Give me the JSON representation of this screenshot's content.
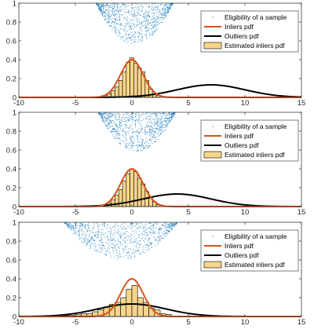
{
  "colors": {
    "scatter": "#2e86c1",
    "inliers": "#d95319",
    "outliers": "#000000",
    "hist_fill": "#f7d58a",
    "hist_edge": "#000000",
    "axes": "#262626"
  },
  "chart_data": [
    {
      "type": "histogram_with_scatter_and_lines",
      "xlim": [
        -10,
        15
      ],
      "ylim": [
        0,
        1
      ],
      "xticks": [
        -10,
        -5,
        0,
        5,
        10,
        15
      ],
      "yticks": [
        0,
        0.2,
        0.4,
        0.6,
        0.8,
        1
      ],
      "xtick_labels": [
        "-10",
        "-5",
        "0",
        "5",
        "10",
        "15"
      ],
      "ytick_labels": [
        "0",
        "0.2",
        "0.4",
        "0.6",
        "0.8",
        "1"
      ],
      "legend": {
        "position": "top-right",
        "entries": [
          "Eligibility of a sample",
          "Inliers pdf",
          "Outliers pdf",
          "Estimated inliers pdf"
        ]
      },
      "inliers_pdf": {
        "mean": 0,
        "std": 1,
        "peak": 0.4
      },
      "outliers_pdf": {
        "mean": 7,
        "std": 3,
        "peak": 0.133
      },
      "histogram": {
        "bin_width": 0.333,
        "bins": [
          {
            "x0": -2.5,
            "h": 0.02
          },
          {
            "x0": -2.167,
            "h": 0.04
          },
          {
            "x0": -1.833,
            "h": 0.07
          },
          {
            "x0": -1.5,
            "h": 0.11
          },
          {
            "x0": -1.167,
            "h": 0.18
          },
          {
            "x0": -0.833,
            "h": 0.27
          },
          {
            "x0": -0.5,
            "h": 0.37
          },
          {
            "x0": -0.167,
            "h": 0.42
          },
          {
            "x0": 0.167,
            "h": 0.36
          },
          {
            "x0": 0.5,
            "h": 0.31
          },
          {
            "x0": 0.833,
            "h": 0.27
          },
          {
            "x0": 1.167,
            "h": 0.18
          },
          {
            "x0": 1.5,
            "h": 0.09
          },
          {
            "x0": 1.833,
            "h": 0.04
          },
          {
            "x0": 2.167,
            "h": 0.02
          }
        ]
      },
      "eligibility_scatter": {
        "x_range": [
          -3.2,
          3.6
        ],
        "y_min": 0.57,
        "y_max": 1.0
      }
    },
    {
      "type": "histogram_with_scatter_and_lines",
      "xlim": [
        -10,
        15
      ],
      "ylim": [
        0,
        1
      ],
      "xticks": [
        -10,
        -5,
        0,
        5,
        10,
        15
      ],
      "yticks": [
        0,
        0.2,
        0.4,
        0.6,
        0.8,
        1
      ],
      "xtick_labels": [
        "-10",
        "-5",
        "0",
        "5",
        "10",
        "15"
      ],
      "ytick_labels": [
        "0",
        "0.2",
        "0.4",
        "0.6",
        "0.8",
        "1"
      ],
      "legend": {
        "position": "top-right",
        "entries": [
          "Eligibility of a sample",
          "Inliers pdf",
          "Outliers pdf",
          "Estimated inliers pdf"
        ]
      },
      "inliers_pdf": {
        "mean": 0,
        "std": 1,
        "peak": 0.4
      },
      "outliers_pdf": {
        "mean": 4,
        "std": 3,
        "peak": 0.133
      },
      "histogram": {
        "bin_width": 0.333,
        "bins": [
          {
            "x0": -2.5,
            "h": 0.02
          },
          {
            "x0": -2.167,
            "h": 0.04
          },
          {
            "x0": -1.833,
            "h": 0.07
          },
          {
            "x0": -1.5,
            "h": 0.12
          },
          {
            "x0": -1.167,
            "h": 0.18
          },
          {
            "x0": -0.833,
            "h": 0.27
          },
          {
            "x0": -0.5,
            "h": 0.35
          },
          {
            "x0": -0.167,
            "h": 0.4
          },
          {
            "x0": 0.167,
            "h": 0.37
          },
          {
            "x0": 0.5,
            "h": 0.3
          },
          {
            "x0": 0.833,
            "h": 0.24
          },
          {
            "x0": 1.167,
            "h": 0.16
          },
          {
            "x0": 1.5,
            "h": 0.09
          },
          {
            "x0": 1.833,
            "h": 0.05
          },
          {
            "x0": 2.167,
            "h": 0.02
          }
        ]
      },
      "eligibility_scatter": {
        "x_range": [
          -3.0,
          3.8
        ],
        "y_min": 0.59,
        "y_max": 1.0
      }
    },
    {
      "type": "histogram_with_scatter_and_lines",
      "xlim": [
        -10,
        15
      ],
      "ylim": [
        0,
        1
      ],
      "xticks": [
        -10,
        -5,
        0,
        5,
        10,
        15
      ],
      "yticks": [
        0,
        0.2,
        0.4,
        0.6,
        0.8,
        1
      ],
      "xtick_labels": [
        "-10",
        "-5",
        "0",
        "5",
        "10",
        "15"
      ],
      "ytick_labels": [
        "0",
        "0.2",
        "0.4",
        "0.6",
        "0.8",
        "1"
      ],
      "legend": {
        "position": "top-right",
        "entries": [
          "Eligibility of a sample",
          "Inliers pdf",
          "Outliers pdf",
          "Estimated inliers pdf"
        ]
      },
      "inliers_pdf": {
        "mean": 0,
        "std": 1,
        "peak": 0.4
      },
      "outliers_pdf": {
        "mean": 0,
        "std": 3,
        "peak": 0.133
      },
      "histogram": {
        "bin_width": 0.5,
        "bins": [
          {
            "x0": -6.0,
            "h": 0.01
          },
          {
            "x0": -5.5,
            "h": 0.01
          },
          {
            "x0": -5.0,
            "h": 0.02
          },
          {
            "x0": -4.5,
            "h": 0.03
          },
          {
            "x0": -4.0,
            "h": 0.03
          },
          {
            "x0": -3.5,
            "h": 0.05
          },
          {
            "x0": -3.0,
            "h": 0.07
          },
          {
            "x0": -2.5,
            "h": 0.1
          },
          {
            "x0": -2.0,
            "h": 0.13
          },
          {
            "x0": -1.5,
            "h": 0.15
          },
          {
            "x0": -1.0,
            "h": 0.2
          },
          {
            "x0": -0.5,
            "h": 0.29
          },
          {
            "x0": 0.0,
            "h": 0.33
          },
          {
            "x0": 0.5,
            "h": 0.2
          },
          {
            "x0": 1.0,
            "h": 0.15
          },
          {
            "x0": 1.5,
            "h": 0.09
          },
          {
            "x0": 2.0,
            "h": 0.07
          },
          {
            "x0": 2.5,
            "h": 0.03
          },
          {
            "x0": 3.0,
            "h": 0.02
          }
        ]
      },
      "eligibility_scatter": {
        "x_range": [
          -6.0,
          4.0
        ],
        "y_min": 0.61,
        "y_max": 1.0
      }
    }
  ]
}
